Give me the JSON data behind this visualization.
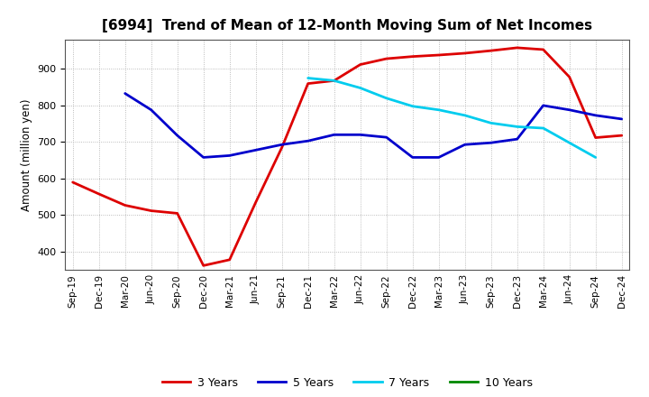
{
  "title": "[6994]  Trend of Mean of 12-Month Moving Sum of Net Incomes",
  "ylabel": "Amount (million yen)",
  "background_color": "#ffffff",
  "grid_color": "#aaaaaa",
  "x_labels": [
    "Sep-19",
    "Dec-19",
    "Mar-20",
    "Jun-20",
    "Sep-20",
    "Dec-20",
    "Mar-21",
    "Jun-21",
    "Sep-21",
    "Dec-21",
    "Mar-22",
    "Jun-22",
    "Sep-22",
    "Dec-22",
    "Mar-23",
    "Jun-23",
    "Sep-23",
    "Dec-23",
    "Mar-24",
    "Jun-24",
    "Sep-24",
    "Dec-24"
  ],
  "ylim": [
    350,
    980
  ],
  "yticks": [
    400,
    500,
    600,
    700,
    800,
    900
  ],
  "series": {
    "3 Years": {
      "color": "#dd0000",
      "data": [
        590,
        558,
        527,
        512,
        505,
        362,
        378,
        535,
        685,
        860,
        868,
        912,
        928,
        934,
        938,
        943,
        950,
        958,
        953,
        878,
        712,
        718
      ]
    },
    "5 Years": {
      "color": "#0000cc",
      "data": [
        null,
        null,
        833,
        788,
        718,
        658,
        663,
        678,
        693,
        703,
        720,
        720,
        713,
        658,
        658,
        693,
        698,
        708,
        800,
        788,
        773,
        763
      ]
    },
    "7 Years": {
      "color": "#00ccee",
      "data": [
        null,
        null,
        null,
        null,
        null,
        null,
        null,
        null,
        null,
        875,
        868,
        848,
        820,
        798,
        788,
        773,
        752,
        742,
        738,
        698,
        658,
        null
      ]
    },
    "10 Years": {
      "color": "#008800",
      "data": [
        null,
        null,
        null,
        null,
        null,
        null,
        null,
        null,
        null,
        null,
        null,
        null,
        null,
        null,
        null,
        null,
        null,
        null,
        null,
        null,
        null,
        null
      ]
    }
  }
}
